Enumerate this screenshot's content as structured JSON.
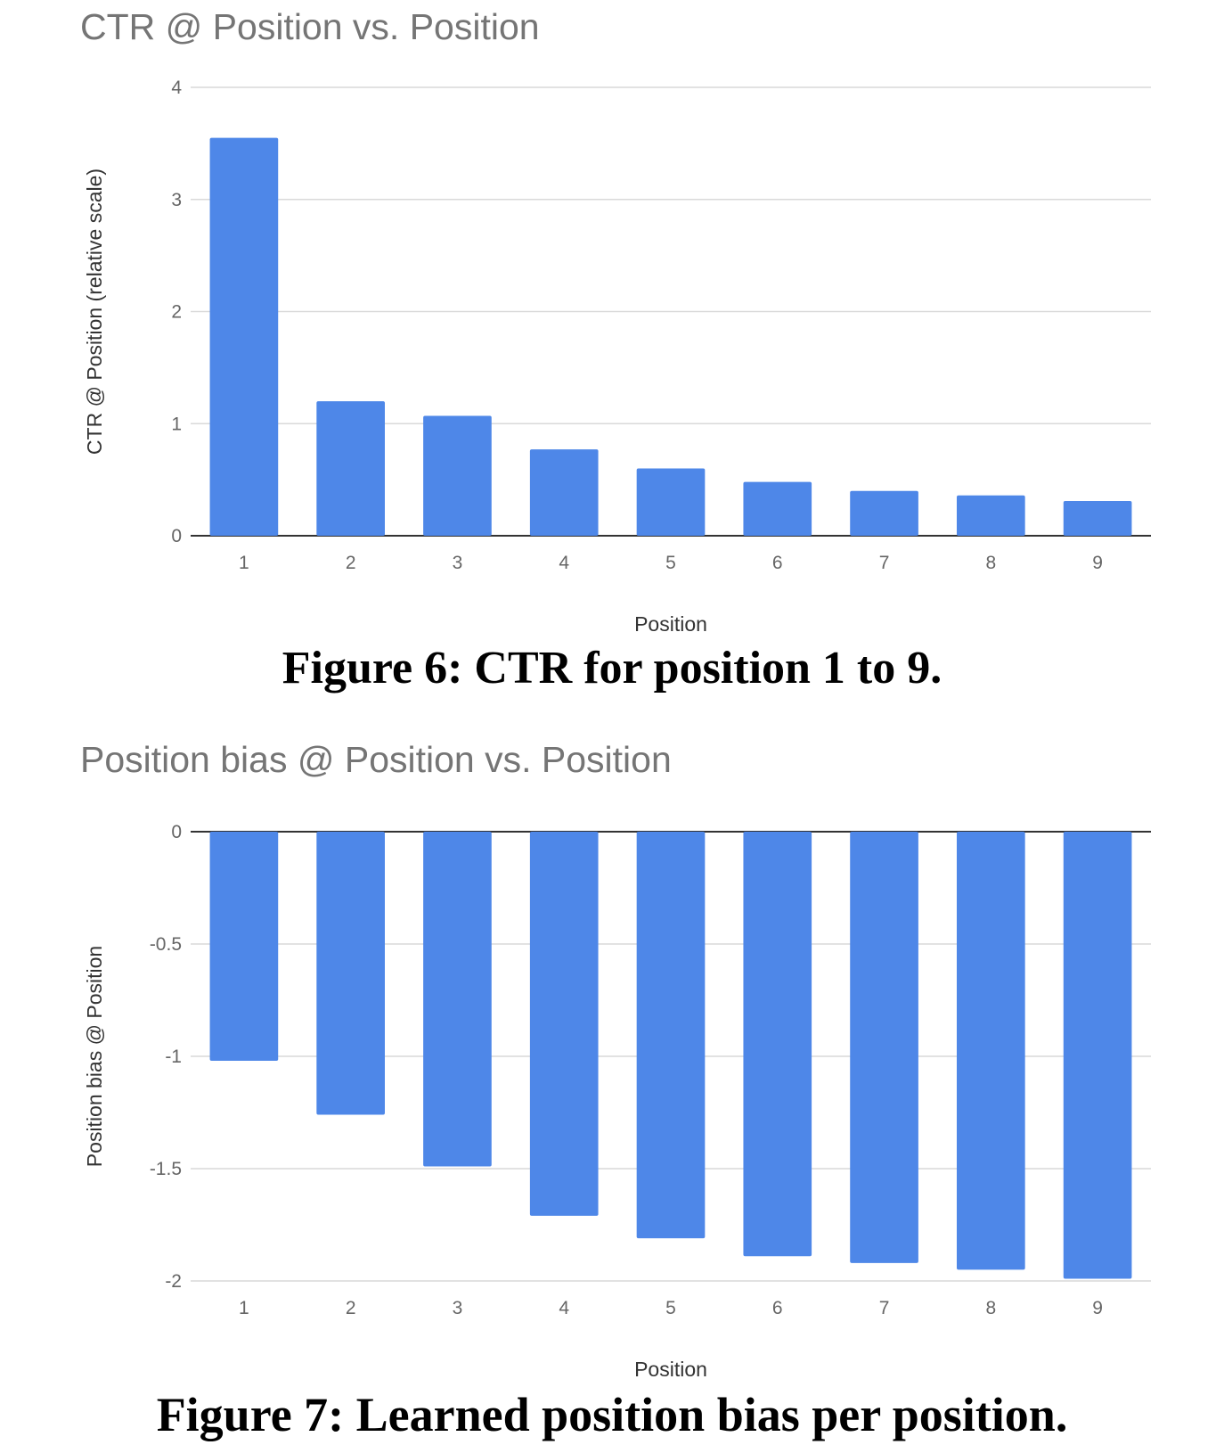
{
  "chart_data": [
    {
      "type": "bar",
      "title": "CTR @ Position vs. Position",
      "xlabel": "Position",
      "ylabel": "CTR @ Position (relative scale)",
      "categories": [
        "1",
        "2",
        "3",
        "4",
        "5",
        "6",
        "7",
        "8",
        "9"
      ],
      "values": [
        3.55,
        1.2,
        1.07,
        0.77,
        0.6,
        0.48,
        0.4,
        0.36,
        0.31
      ],
      "ylim": [
        0,
        4
      ],
      "yticks": [
        "0",
        "1",
        "2",
        "3",
        "4"
      ],
      "grid": true,
      "bar_color": "#4e87e8",
      "caption": "Figure 6: CTR for position 1 to 9."
    },
    {
      "type": "bar",
      "title": "Position bias @ Position vs. Position",
      "xlabel": "Position",
      "ylabel": "Position bias @ Position",
      "categories": [
        "1",
        "2",
        "3",
        "4",
        "5",
        "6",
        "7",
        "8",
        "9"
      ],
      "values": [
        -1.02,
        -1.26,
        -1.49,
        -1.71,
        -1.81,
        -1.89,
        -1.92,
        -1.95,
        -1.99
      ],
      "ylim": [
        -2,
        0
      ],
      "yticks": [
        "-2",
        "-1.5",
        "-1",
        "-0.5",
        "0"
      ],
      "grid": true,
      "bar_color": "#4e87e8",
      "caption": "Figure 7: Learned position bias per position."
    }
  ]
}
